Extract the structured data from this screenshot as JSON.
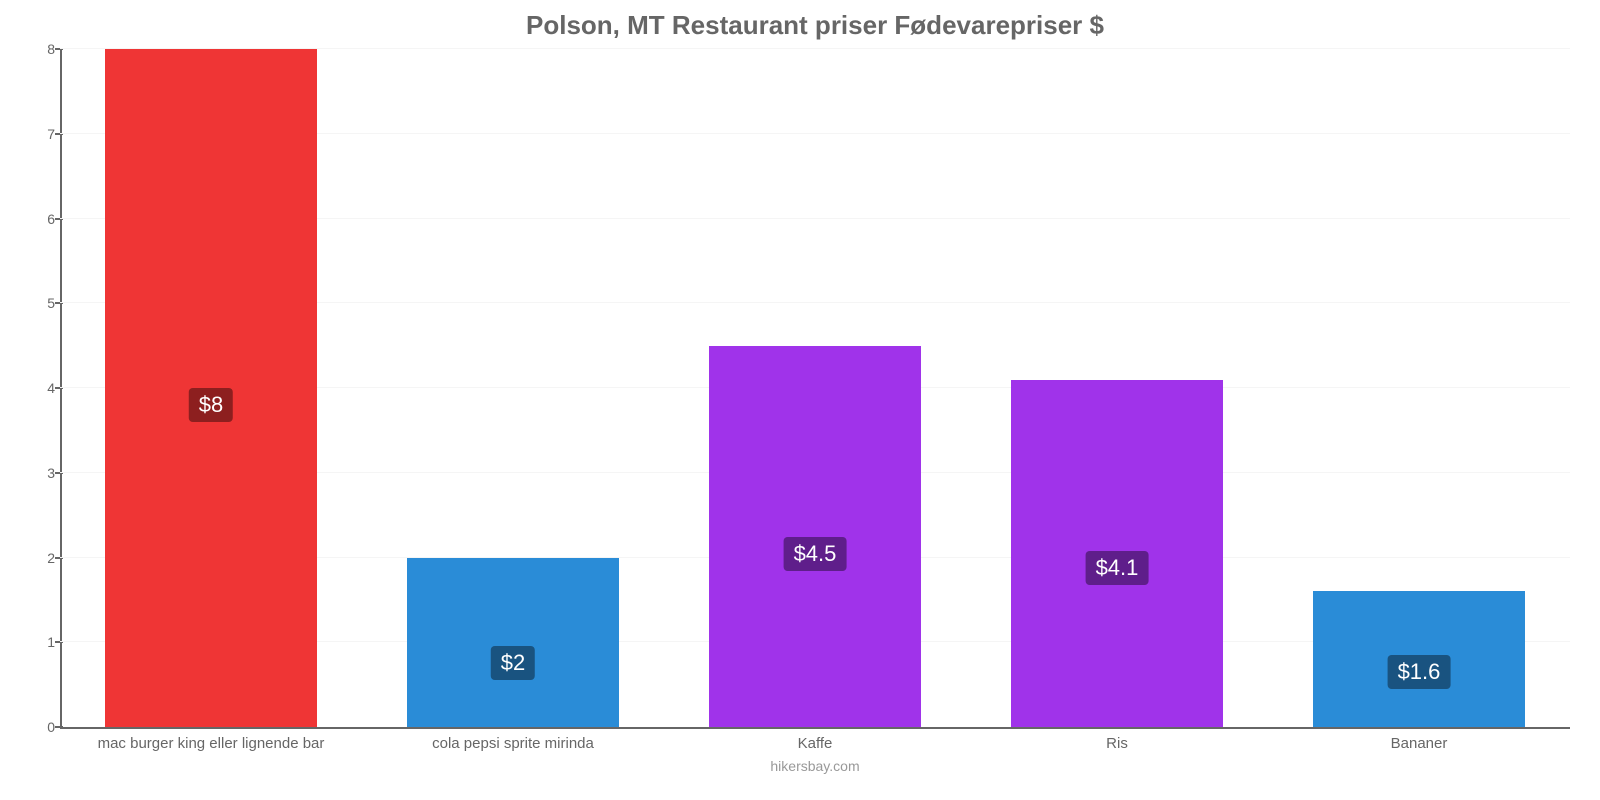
{
  "chart": {
    "type": "bar",
    "title": "Polson, MT Restaurant priser Fødevarepriser $",
    "title_color": "#666666",
    "title_fontsize": 26,
    "footer": "hikersbay.com",
    "footer_color": "#999999",
    "background_color": "#ffffff",
    "grid_color": "#f5f5f5",
    "axis_color": "#666666",
    "label_color": "#666666",
    "label_fontsize": 15,
    "ylim": [
      0,
      8
    ],
    "ytick_step": 1,
    "yticks": [
      0,
      1,
      2,
      3,
      4,
      5,
      6,
      7,
      8
    ],
    "bar_width": 0.7,
    "value_label_fontsize": 22,
    "value_label_text_color": "#ffffff",
    "categories": [
      "mac burger king eller lignende bar",
      "cola pepsi sprite mirinda",
      "Kaffe",
      "Ris",
      "Bananer"
    ],
    "values": [
      8,
      2,
      4.5,
      4.1,
      1.6
    ],
    "value_labels": [
      "$8",
      "$2",
      "$4.5",
      "$4.1",
      "$1.6"
    ],
    "bar_colors": [
      "#ef3535",
      "#2a8cd7",
      "#a033ea",
      "#a033ea",
      "#2a8cd7"
    ],
    "value_label_bg_colors": [
      "#8d1f1f",
      "#195380",
      "#5f1e8b",
      "#5f1e8b",
      "#195380"
    ],
    "value_label_y_offset_pct": [
      45,
      28,
      41,
      41,
      28
    ]
  }
}
